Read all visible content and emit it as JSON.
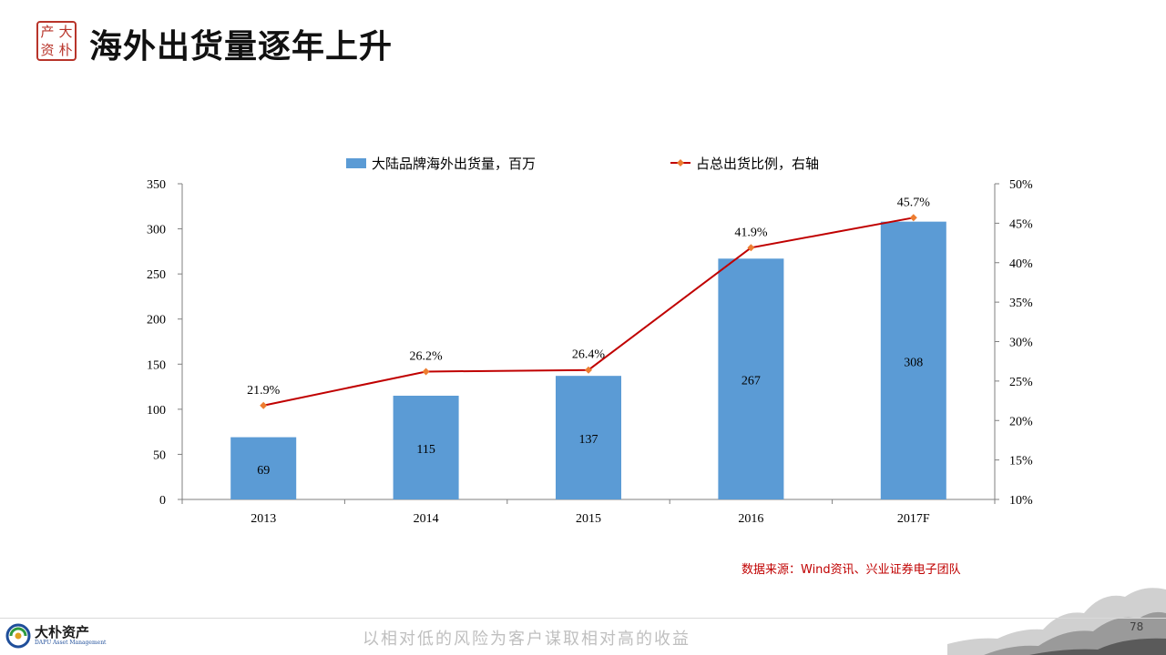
{
  "header": {
    "title": "海外出货量逐年上升",
    "seal_chars": [
      "大",
      "朴",
      "资",
      "产"
    ]
  },
  "chart_data": {
    "type": "bar",
    "categories": [
      "2013",
      "2014",
      "2015",
      "2016",
      "2017F"
    ],
    "series": [
      {
        "name": "大陆品牌海外出货量，百万",
        "type": "bar",
        "axis": "left",
        "color": "#5b9bd5",
        "values": [
          69,
          115,
          137,
          267,
          308
        ],
        "labels": [
          "69",
          "115",
          "137",
          "267",
          "308"
        ]
      },
      {
        "name": "占总出货比例，右轴",
        "type": "line",
        "axis": "right",
        "color": "#c00000",
        "marker_color": "#ed7d31",
        "values": [
          21.9,
          26.2,
          26.4,
          41.9,
          45.7
        ],
        "labels": [
          "21.9%",
          "26.2%",
          "26.4%",
          "41.9%",
          "45.7%"
        ]
      }
    ],
    "ylim": [
      0,
      350
    ],
    "yticks": [
      "0",
      "50",
      "100",
      "150",
      "200",
      "250",
      "300",
      "350"
    ],
    "y2lim": [
      10,
      50
    ],
    "y2ticks": [
      "10%",
      "15%",
      "20%",
      "25%",
      "30%",
      "35%",
      "40%",
      "45%",
      "50%"
    ],
    "legend_position": "top",
    "grid": false
  },
  "footer": {
    "source": "数据来源：Wind资讯、兴业证券电子团队",
    "logo_cn": "大朴资产",
    "logo_en": "DAPU Asset Management",
    "slogan": "以相对低的风险为客户谋取相对高的收益",
    "page_number": "78"
  }
}
